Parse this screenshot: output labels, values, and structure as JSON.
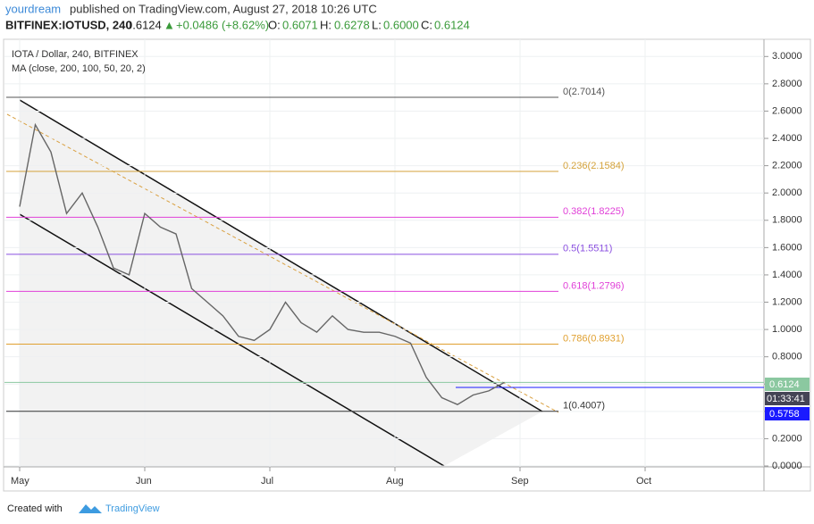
{
  "header": {
    "author": "yourdream",
    "published": "published on TradingView.com, August 27, 2018 10:26 UTC",
    "symbol": "BITFINEX:IOTUSD, 240",
    "last": "0.6124",
    "change": "+0.0486 (+8.62%)",
    "o_label": "O:",
    "o": "0.6071",
    "h_label": "H:",
    "h": "0.6278",
    "l_label": "L:",
    "l": "0.6000",
    "c_label": "C:",
    "c": "0.6124"
  },
  "chart_data": {
    "type": "line",
    "title": "IOTA / Dollar, 240, BITFINEX",
    "subtitle": "MA (close, 200, 100, 50, 20, 2)",
    "categories": [
      "May",
      null,
      null,
      null,
      null,
      null,
      null,
      null,
      "Jun",
      null,
      null,
      null,
      null,
      null,
      null,
      null,
      "Jul",
      null,
      null,
      null,
      null,
      null,
      null,
      null,
      "Aug",
      null,
      null,
      null,
      null,
      null,
      null,
      null,
      "Sep",
      null,
      null,
      null,
      null,
      null,
      null,
      null,
      "Oct",
      null,
      null,
      null,
      null,
      null,
      null,
      null
    ],
    "series": [
      {
        "color": "#666666",
        "values": [
          1.9,
          2.5,
          2.3,
          1.85,
          2.0,
          1.75,
          1.45,
          1.4,
          1.85,
          1.75,
          1.7,
          1.3,
          1.2,
          1.1,
          0.95,
          0.92,
          1.0,
          1.2,
          1.05,
          0.98,
          1.1,
          1.0,
          0.98,
          0.98,
          0.95,
          0.9,
          0.65,
          0.5,
          0.45,
          0.52,
          0.55,
          0.6124,
          null,
          null,
          null,
          null,
          null,
          null,
          null,
          null,
          null,
          null,
          null,
          null,
          null,
          null,
          null,
          null
        ]
      }
    ],
    "ylim": [
      0,
      3.1
    ],
    "yticks": [
      {
        "value": 0,
        "label": "0.0000"
      },
      {
        "value": 0.2,
        "label": "0.2000"
      },
      {
        "value": 0.4,
        "label": "0.4000"
      },
      {
        "value": 0.6,
        "label": "0.6000"
      },
      {
        "value": 0.8,
        "label": "0.8000"
      },
      {
        "value": 1.0,
        "label": "1.0000"
      },
      {
        "value": 1.2,
        "label": "1.2000"
      },
      {
        "value": 1.4,
        "label": "1.4000"
      },
      {
        "value": 1.6,
        "label": "1.6000"
      },
      {
        "value": 1.8,
        "label": "1.8000"
      },
      {
        "value": 2.0,
        "label": "2.0000"
      },
      {
        "value": 2.2,
        "label": "2.2000"
      },
      {
        "value": 2.4,
        "label": "2.4000"
      },
      {
        "value": 2.6,
        "label": "2.6000"
      },
      {
        "value": 2.8,
        "label": "2.8000"
      },
      {
        "value": 3.0,
        "label": "3.0000"
      }
    ],
    "grid": true,
    "fib_levels": [
      {
        "value": 2.7014,
        "label": "0(2.7014)",
        "color": "#555555"
      },
      {
        "value": 2.1584,
        "label": "0.236(2.1584)",
        "color": "#d4a23a"
      },
      {
        "value": 1.8225,
        "label": "0.382(1.8225)",
        "color": "#e040d8"
      },
      {
        "value": 1.5511,
        "label": "0.5(1.5511)",
        "color": "#8a4fe0"
      },
      {
        "value": 1.2796,
        "label": "0.618(1.2796)",
        "color": "#e040d8"
      },
      {
        "value": 0.8931,
        "label": "0.786(0.8931)",
        "color": "#e0a030"
      },
      {
        "value": 0.4007,
        "label": "1(0.4007)",
        "color": "#333333"
      }
    ],
    "price_tag": {
      "value": 0.6124,
      "label": "0.6124",
      "color": "#8bc8a0"
    },
    "countdown": "01:33:41",
    "alert_line": {
      "value": 0.5758,
      "label": "0.5758",
      "color": "#1a1aff"
    }
  },
  "footer": {
    "created": "Created with",
    "brand": "TradingView"
  }
}
